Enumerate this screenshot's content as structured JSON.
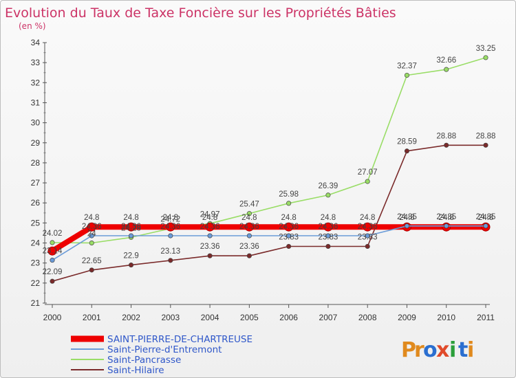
{
  "title": "Evolution du Taux de Taxe Foncière sur les Propriétés Bâties",
  "unit_label": "(en %)",
  "logo": {
    "letters": [
      "P",
      "r",
      "o",
      "x",
      "i",
      "t",
      "i"
    ],
    "colors": [
      "#e08a1e",
      "#e08a1e",
      "#2b6fd0",
      "#e04a2a",
      "#2b9f3a",
      "#2b6fd0",
      "#e08a1e"
    ]
  },
  "chart_data": {
    "type": "line",
    "title": "Evolution du Taux de Taxe Foncière sur les Propriétés Bâties",
    "ylabel": "(en %)",
    "xlabel": "",
    "x": [
      "2000",
      "2001",
      "2002",
      "2003",
      "2004",
      "2005",
      "2006",
      "2007",
      "2008",
      "2009",
      "2010",
      "2011"
    ],
    "ylim": [
      21,
      34
    ],
    "yticks": [
      "21",
      "22",
      "23",
      "24",
      "25",
      "26",
      "27",
      "28",
      "29",
      "30",
      "31",
      "32",
      "33",
      "34"
    ],
    "grid": false,
    "legend_position": "bottom-left",
    "series": [
      {
        "name": "SAINT-PIERRE-DE-CHARTREUSE",
        "color": "#ee0000",
        "values": [
          23.6,
          24.8,
          24.8,
          24.8,
          24.8,
          24.8,
          24.8,
          24.8,
          24.8,
          24.8,
          24.8,
          24.8
        ],
        "labels": [
          "",
          "24.8",
          "24.8",
          "24.8",
          "24.8",
          "24.8",
          "24.8",
          "24.8",
          "24.8",
          "24.8",
          "24.8",
          "24.8"
        ]
      },
      {
        "name": "Saint-Pierre-d'Entremont",
        "color": "#6a9bd8",
        "values": [
          23.14,
          24.36,
          24.36,
          24.36,
          24.36,
          24.36,
          24.36,
          24.36,
          24.36,
          24.85,
          24.85,
          24.85
        ],
        "labels": [
          "23.14",
          "24.36",
          "24.36",
          "24.36",
          "24.36",
          "24.36",
          "24.36",
          "24.36",
          "24.36",
          "24.85",
          "24.85",
          "24.85"
        ]
      },
      {
        "name": "Saint-Pancrasse",
        "color": "#99dd66",
        "values": [
          24.02,
          24,
          24.28,
          24.72,
          24.97,
          25.47,
          25.98,
          26.39,
          27.07,
          32.37,
          32.66,
          33.25
        ],
        "labels": [
          "24.02",
          "24",
          "24.28",
          "24.72",
          "24.97",
          "25.47",
          "25.98",
          "26.39",
          "27.07",
          "32.37",
          "32.66",
          "33.25"
        ]
      },
      {
        "name": "Saint-Hilaire",
        "color": "#7a2a2a",
        "values": [
          22.09,
          22.65,
          22.9,
          23.13,
          23.36,
          23.36,
          23.83,
          23.83,
          23.83,
          28.59,
          28.88,
          28.88
        ],
        "labels": [
          "22.09",
          "22.65",
          "22.9",
          "23.13",
          "23.36",
          "23.36",
          "23.83",
          "23.83",
          "23.83",
          "28.59",
          "28.88",
          "28.88"
        ]
      }
    ]
  }
}
